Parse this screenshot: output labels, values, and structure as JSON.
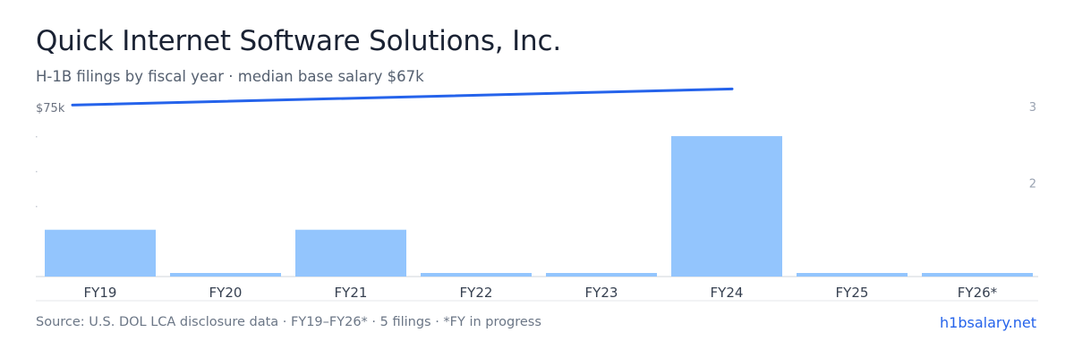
{
  "header": {
    "title": "Quick Internet Software Solutions, Inc.",
    "subtitle": "H-1B filings by fiscal year · median base salary $67k"
  },
  "footer": {
    "source": "Source: U.S. DOL LCA disclosure data · FY19–FY26* · 5 filings · *FY in progress",
    "brand": "h1bsalary.net"
  },
  "colors": {
    "bar": "#93c5fd",
    "line": "#2563eb",
    "axis": "#d1d5db",
    "tick_text": "#9aa3b2",
    "label_text": "#374151"
  },
  "chart_data": {
    "type": "bar",
    "categories": [
      "FY19",
      "FY20",
      "FY21",
      "FY22",
      "FY23",
      "FY24",
      "FY25",
      "FY26*"
    ],
    "series": [
      {
        "type": "bar",
        "axis": "right",
        "values": [
          1,
          0,
          1,
          0,
          0,
          3,
          0,
          0
        ]
      },
      {
        "type": "line",
        "axis": "left",
        "values": [
          74500,
          null,
          null,
          null,
          null,
          71000,
          null,
          null
        ]
      }
    ],
    "left_axis": {
      "ticks": [
        {
          "value": 75000,
          "label": "$75k"
        }
      ]
    },
    "right_axis": {
      "ticks": [
        {
          "value": 3,
          "label": "3"
        },
        {
          "value": 2,
          "label": "2"
        }
      ]
    },
    "grid": false,
    "legend": "none"
  }
}
